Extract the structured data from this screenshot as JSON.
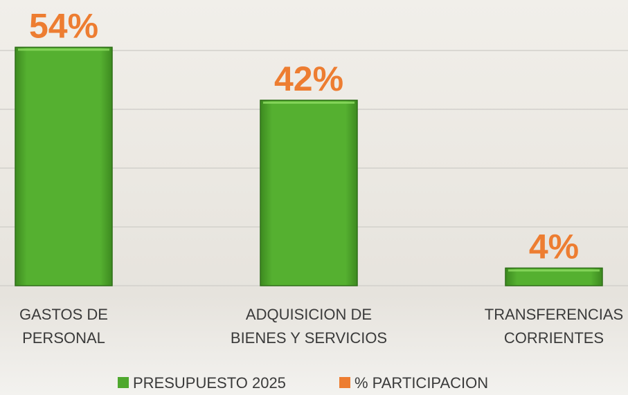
{
  "chart_data": {
    "type": "bar",
    "categories": [
      "GASTOS DE PERSONAL",
      "ADQUISICION DE BIENES Y SERVICIOS",
      "TRANSFERENCIAS CORRIENTES"
    ],
    "series": [
      {
        "name": "PRESUPUESTO 2025",
        "color": "#4fa82e",
        "values": [
          54,
          42,
          4
        ]
      },
      {
        "name": "% PARTICIPACION",
        "color": "#ed7d31",
        "values": [
          54,
          42,
          4
        ],
        "value_labels": [
          "54%",
          "42%",
          "4%"
        ]
      }
    ],
    "ylim": [
      0,
      60
    ]
  }
}
